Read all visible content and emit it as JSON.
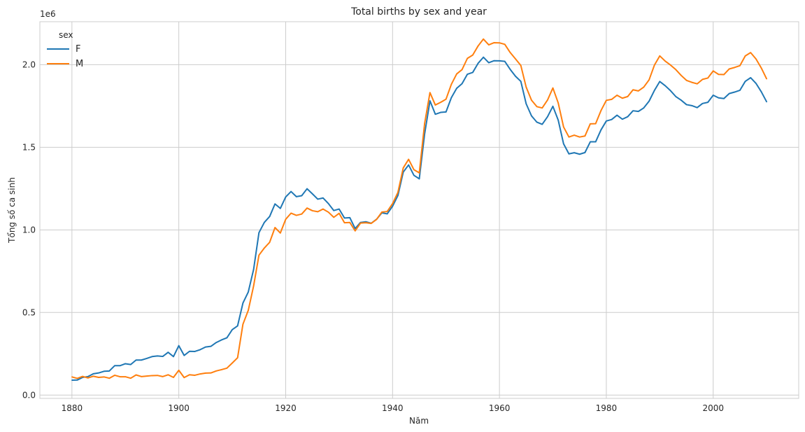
{
  "chart_data": {
    "type": "line",
    "title": "Total births by sex and year",
    "xlabel": "Năm",
    "ylabel": "Tổng số ca sinh",
    "y_offset_label": "1e6",
    "legend_title": "sex",
    "legend_position": "top-left",
    "grid": true,
    "xlim": [
      1874,
      2016
    ],
    "ylim": [
      -0.02,
      2.26
    ],
    "x_ticks": [
      "1880",
      "1900",
      "1920",
      "1940",
      "1960",
      "1980",
      "2000"
    ],
    "y_ticks": [
      "0.0",
      "0.5",
      "1.0",
      "1.5",
      "2.0"
    ],
    "x": [
      1880,
      1881,
      1882,
      1883,
      1884,
      1885,
      1886,
      1887,
      1888,
      1889,
      1890,
      1891,
      1892,
      1893,
      1894,
      1895,
      1896,
      1897,
      1898,
      1899,
      1900,
      1901,
      1902,
      1903,
      1904,
      1905,
      1906,
      1907,
      1908,
      1909,
      1910,
      1911,
      1912,
      1913,
      1914,
      1915,
      1916,
      1917,
      1918,
      1919,
      1920,
      1921,
      1922,
      1923,
      1924,
      1925,
      1926,
      1927,
      1928,
      1929,
      1930,
      1931,
      1932,
      1933,
      1934,
      1935,
      1936,
      1937,
      1938,
      1939,
      1940,
      1941,
      1942,
      1943,
      1944,
      1945,
      1946,
      1947,
      1948,
      1949,
      1950,
      1951,
      1952,
      1953,
      1954,
      1955,
      1956,
      1957,
      1958,
      1959,
      1960,
      1961,
      1962,
      1963,
      1964,
      1965,
      1966,
      1967,
      1968,
      1969,
      1970,
      1971,
      1972,
      1973,
      1974,
      1975,
      1976,
      1977,
      1978,
      1979,
      1980,
      1981,
      1982,
      1983,
      1984,
      1985,
      1986,
      1987,
      1988,
      1989,
      1990,
      1991,
      1992,
      1993,
      1994,
      1995,
      1996,
      1997,
      1998,
      1999,
      2000,
      2001,
      2002,
      2003,
      2004,
      2005,
      2006,
      2007,
      2008,
      2009,
      2010
    ],
    "series": [
      {
        "name": "F",
        "color": "#1f77b4",
        "values": [
          0.09,
          0.091,
          0.107,
          0.112,
          0.129,
          0.134,
          0.144,
          0.146,
          0.178,
          0.178,
          0.19,
          0.185,
          0.212,
          0.212,
          0.222,
          0.233,
          0.237,
          0.234,
          0.259,
          0.233,
          0.299,
          0.24,
          0.265,
          0.264,
          0.275,
          0.291,
          0.295,
          0.318,
          0.334,
          0.347,
          0.396,
          0.419,
          0.557,
          0.624,
          0.761,
          0.983,
          1.045,
          1.081,
          1.157,
          1.13,
          1.199,
          1.232,
          1.201,
          1.207,
          1.249,
          1.218,
          1.186,
          1.193,
          1.159,
          1.117,
          1.126,
          1.072,
          1.074,
          1.008,
          1.045,
          1.049,
          1.04,
          1.064,
          1.103,
          1.097,
          1.143,
          1.208,
          1.35,
          1.393,
          1.33,
          1.309,
          1.581,
          1.781,
          1.7,
          1.711,
          1.714,
          1.8,
          1.857,
          1.885,
          1.942,
          1.953,
          2.008,
          2.045,
          2.012,
          2.024,
          2.023,
          2.02,
          1.972,
          1.93,
          1.899,
          1.763,
          1.69,
          1.652,
          1.639,
          1.685,
          1.748,
          1.664,
          1.521,
          1.46,
          1.467,
          1.458,
          1.468,
          1.533,
          1.533,
          1.605,
          1.659,
          1.668,
          1.694,
          1.67,
          1.685,
          1.721,
          1.717,
          1.738,
          1.779,
          1.844,
          1.898,
          1.873,
          1.843,
          1.807,
          1.785,
          1.758,
          1.752,
          1.74,
          1.765,
          1.772,
          1.815,
          1.799,
          1.795,
          1.825,
          1.834,
          1.845,
          1.899,
          1.921,
          1.887,
          1.836,
          1.775
        ]
      },
      {
        "name": "M",
        "color": "#ff7f0e",
        "values": [
          0.11,
          0.101,
          0.113,
          0.104,
          0.114,
          0.107,
          0.11,
          0.102,
          0.12,
          0.111,
          0.111,
          0.102,
          0.122,
          0.112,
          0.115,
          0.118,
          0.119,
          0.112,
          0.123,
          0.107,
          0.15,
          0.106,
          0.123,
          0.12,
          0.128,
          0.133,
          0.134,
          0.146,
          0.154,
          0.163,
          0.194,
          0.226,
          0.429,
          0.513,
          0.661,
          0.847,
          0.89,
          0.925,
          1.014,
          0.981,
          1.064,
          1.101,
          1.088,
          1.096,
          1.132,
          1.116,
          1.11,
          1.126,
          1.107,
          1.076,
          1.1,
          1.043,
          1.045,
          0.994,
          1.041,
          1.043,
          1.039,
          1.063,
          1.108,
          1.111,
          1.159,
          1.227,
          1.375,
          1.427,
          1.364,
          1.345,
          1.644,
          1.831,
          1.756,
          1.772,
          1.791,
          1.881,
          1.944,
          1.97,
          2.038,
          2.058,
          2.113,
          2.155,
          2.12,
          2.133,
          2.132,
          2.123,
          2.074,
          2.035,
          1.995,
          1.864,
          1.785,
          1.746,
          1.738,
          1.786,
          1.859,
          1.768,
          1.623,
          1.562,
          1.573,
          1.562,
          1.568,
          1.642,
          1.643,
          1.722,
          1.784,
          1.79,
          1.815,
          1.797,
          1.807,
          1.848,
          1.841,
          1.864,
          1.908,
          1.997,
          2.053,
          2.022,
          1.998,
          1.97,
          1.935,
          1.905,
          1.893,
          1.884,
          1.911,
          1.919,
          1.962,
          1.941,
          1.94,
          1.974,
          1.983,
          1.994,
          2.053,
          2.073,
          2.035,
          1.98,
          1.914
        ]
      }
    ]
  }
}
